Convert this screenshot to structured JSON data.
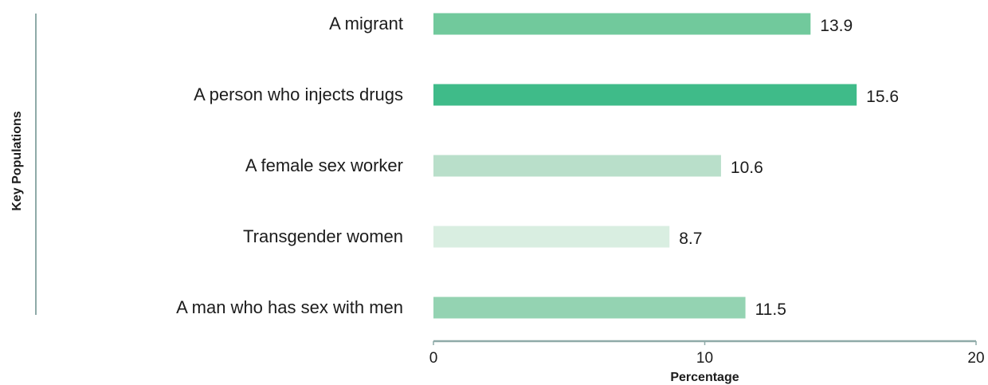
{
  "chart_data": {
    "type": "bar",
    "orientation": "horizontal",
    "categories": [
      "A migrant",
      "A person who injects drugs",
      "A female sex worker",
      "Transgender women",
      "A man who has sex with men"
    ],
    "values": [
      13.9,
      15.6,
      10.6,
      8.7,
      11.5
    ],
    "value_labels": [
      "13.9",
      "15.6",
      "10.6",
      "8.7",
      "11.5"
    ],
    "bar_colors": [
      "#71c99c",
      "#3fbb89",
      "#b9dfca",
      "#d9eee1",
      "#94d3b2"
    ],
    "xlabel": "Percentage",
    "ylabel": "Key Populations",
    "xlim": [
      0,
      20
    ],
    "x_ticks": [
      0,
      10,
      20
    ],
    "x_tick_labels": [
      "0",
      "10",
      "20"
    ],
    "grid": false,
    "axis_color": "#8faaa8"
  }
}
